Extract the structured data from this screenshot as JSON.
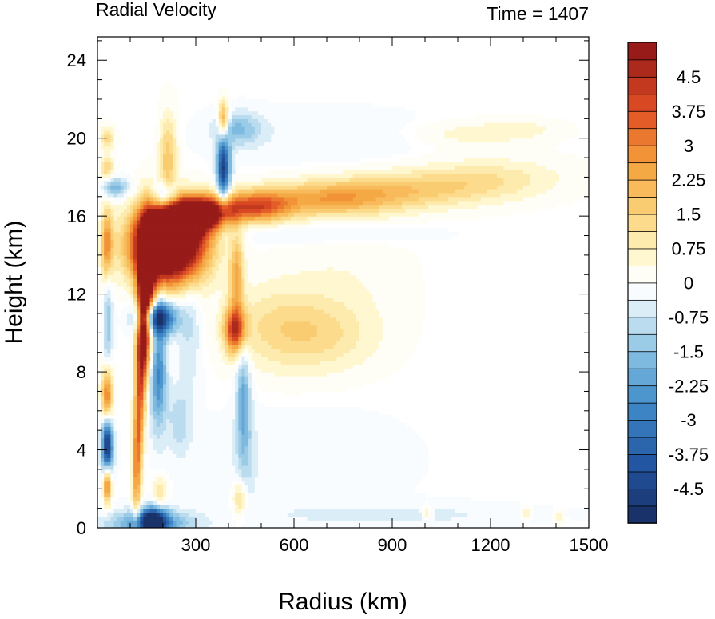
{
  "chart_data": {
    "type": "heatmap",
    "title": "Radial Velocity",
    "annotation": "Time = 1407",
    "xlabel": "Radius (km)",
    "ylabel": "Height (km)",
    "xlim": [
      0,
      1500
    ],
    "ylim": [
      0,
      25.2
    ],
    "x_ticks": [
      "300",
      "600",
      "900",
      "1200",
      "1500"
    ],
    "x_tick_values": [
      300,
      600,
      900,
      1200,
      1500
    ],
    "y_ticks": [
      "0",
      "4",
      "8",
      "12",
      "16",
      "20",
      "24"
    ],
    "y_tick_values": [
      0,
      4,
      8,
      12,
      16,
      20,
      24
    ],
    "colorbar": {
      "min": -5.25,
      "max": 5.25,
      "step": 0.375,
      "labels": [
        "4.5",
        "3.75",
        "3",
        "2.25",
        "1.5",
        "0.75",
        "0",
        "-0.75",
        "-1.5",
        "-2.25",
        "-3",
        "-3.75",
        "-4.5"
      ],
      "label_values": [
        4.5,
        3.75,
        3,
        2.25,
        1.5,
        0.75,
        0,
        -0.75,
        -1.5,
        -2.25,
        -3,
        -3.75,
        -4.5
      ]
    },
    "features": [
      {
        "x": 215,
        "y": 14.5,
        "sx": 75,
        "sy": 1.3,
        "v": 9
      },
      {
        "x": 250,
        "y": 15.8,
        "sx": 60,
        "sy": 0.8,
        "v": 5
      },
      {
        "x": 150,
        "y": 12.5,
        "sx": 18,
        "sy": 2.2,
        "v": 6
      },
      {
        "x": 140,
        "y": 10.0,
        "sx": 13,
        "sy": 2.0,
        "v": 4
      },
      {
        "x": 128,
        "y": 6.5,
        "sx": 10,
        "sy": 2.5,
        "v": 3
      },
      {
        "x": 118,
        "y": 3.0,
        "sx": 8,
        "sy": 2.0,
        "v": 2.5
      },
      {
        "x": 330,
        "y": 16.2,
        "sx": 55,
        "sy": 0.55,
        "v": 5
      },
      {
        "x": 480,
        "y": 16.5,
        "sx": 75,
        "sy": 0.55,
        "v": 3.5
      },
      {
        "x": 700,
        "y": 16.9,
        "sx": 150,
        "sy": 0.6,
        "v": 2.2
      },
      {
        "x": 950,
        "y": 17.4,
        "sx": 180,
        "sy": 0.65,
        "v": 1.4
      },
      {
        "x": 1200,
        "y": 18.0,
        "sx": 150,
        "sy": 0.7,
        "v": 0.9
      },
      {
        "x": 1150,
        "y": 20.2,
        "sx": 130,
        "sy": 0.45,
        "v": 0.6
      },
      {
        "x": 1300,
        "y": 20.5,
        "sx": 80,
        "sy": 0.3,
        "v": 0.4
      },
      {
        "x": 420,
        "y": 10.2,
        "sx": 22,
        "sy": 0.8,
        "v": 4
      },
      {
        "x": 425,
        "y": 13.0,
        "sx": 15,
        "sy": 1.5,
        "v": 2.2
      },
      {
        "x": 550,
        "y": 10.3,
        "sx": 110,
        "sy": 1.5,
        "v": 1.1
      },
      {
        "x": 700,
        "y": 9.8,
        "sx": 110,
        "sy": 1.2,
        "v": 0.8
      },
      {
        "x": 750,
        "y": 12.5,
        "sx": 130,
        "sy": 2.2,
        "v": 0.35
      },
      {
        "x": 30,
        "y": 14.5,
        "sx": 12,
        "sy": 1.4,
        "v": 3.5
      },
      {
        "x": 30,
        "y": 6.8,
        "sx": 12,
        "sy": 1.1,
        "v": 4
      },
      {
        "x": 30,
        "y": 2.3,
        "sx": 9,
        "sy": 0.7,
        "v": 4
      },
      {
        "x": 30,
        "y": 20.0,
        "sx": 15,
        "sy": 0.4,
        "v": 1.5
      },
      {
        "x": 30,
        "y": 18.5,
        "sx": 15,
        "sy": 0.4,
        "v": 1.5
      },
      {
        "x": 215,
        "y": 19.0,
        "sx": 18,
        "sy": 1.5,
        "v": 1.8
      },
      {
        "x": 385,
        "y": 20.8,
        "sx": 12,
        "sy": 0.7,
        "v": 3.5
      },
      {
        "x": 435,
        "y": 1.5,
        "sx": 15,
        "sy": 0.7,
        "v": 1.5
      },
      {
        "x": 190,
        "y": 1.8,
        "sx": 14,
        "sy": 0.6,
        "v": 1.2
      },
      {
        "x": 1005,
        "y": 0.8,
        "sx": 10,
        "sy": 0.25,
        "v": 1.0
      },
      {
        "x": 1310,
        "y": 0.8,
        "sx": 10,
        "sy": 0.25,
        "v": 1.0
      },
      {
        "x": 1410,
        "y": 0.6,
        "sx": 10,
        "sy": 0.25,
        "v": 1.0
      },
      {
        "x": 180,
        "y": 10.8,
        "sx": 40,
        "sy": 0.6,
        "v": -5
      },
      {
        "x": 185,
        "y": 8.0,
        "sx": 18,
        "sy": 2.0,
        "v": -2.8
      },
      {
        "x": 170,
        "y": 0.4,
        "sx": 28,
        "sy": 0.45,
        "v": -5
      },
      {
        "x": 160,
        "y": 0.2,
        "sx": 90,
        "sy": 0.5,
        "v": -2.5
      },
      {
        "x": 30,
        "y": 4.2,
        "sx": 12,
        "sy": 1.1,
        "v": -5
      },
      {
        "x": 32,
        "y": 11.0,
        "sx": 10,
        "sy": 3.5,
        "v": -1.5
      },
      {
        "x": 55,
        "y": 17.5,
        "sx": 28,
        "sy": 0.35,
        "v": -1.8
      },
      {
        "x": 210,
        "y": 17.0,
        "sx": 25,
        "sy": 0.5,
        "v": -3
      },
      {
        "x": 385,
        "y": 18.5,
        "sx": 14,
        "sy": 1.3,
        "v": -4.5
      },
      {
        "x": 430,
        "y": 20.5,
        "sx": 50,
        "sy": 0.6,
        "v": -1.5
      },
      {
        "x": 445,
        "y": 7.0,
        "sx": 14,
        "sy": 1.8,
        "v": -1.8
      },
      {
        "x": 450,
        "y": 4.0,
        "sx": 20,
        "sy": 2.0,
        "v": -0.9
      },
      {
        "x": 280,
        "y": 10.0,
        "sx": 25,
        "sy": 2.0,
        "v": -0.8
      },
      {
        "x": 250,
        "y": 5.5,
        "sx": 25,
        "sy": 1.2,
        "v": -1.0
      },
      {
        "x": 600,
        "y": 3.5,
        "sx": 230,
        "sy": 1.8,
        "v": -0.3
      },
      {
        "x": 900,
        "y": 0.7,
        "sx": 300,
        "sy": 0.4,
        "v": -0.5
      },
      {
        "x": 700,
        "y": 20.0,
        "sx": 250,
        "sy": 1.0,
        "v": -0.3
      },
      {
        "x": 700,
        "y": 15.1,
        "sx": 200,
        "sy": 0.35,
        "v": -0.5
      }
    ]
  }
}
